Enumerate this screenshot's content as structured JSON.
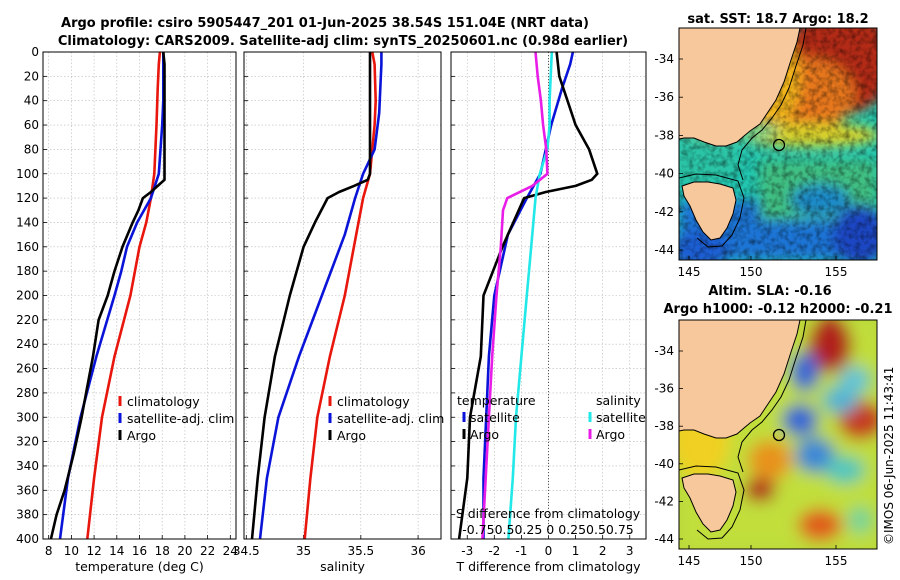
{
  "title_line1": "Argo profile: csiro 5905447_201 01-Jun-2025 38.54S 151.04E (NRT data)",
  "title_line2": "Climatology: CARS2009. Satellite-adj clim: synTS_20250601.nc (0.98d earlier)",
  "credit": "©IMOS 06-Jun-2025 11:43:41",
  "colors": {
    "red": "#e8160c",
    "blue": "#0a14d8",
    "black": "#000000",
    "cyan": "#22e8e8",
    "magenta": "#e81ee8",
    "land": "#f7c89b"
  },
  "chart_data": [
    {
      "type": "line",
      "name": "temperature",
      "xlabel": "temperature (deg C)",
      "xlim": [
        7.5,
        24.5
      ],
      "xticks": [
        "8",
        "10",
        "12",
        "14",
        "16",
        "18",
        "20",
        "22",
        "24"
      ],
      "xtick_values": [
        8,
        10,
        12,
        14,
        16,
        18,
        20,
        22,
        24
      ],
      "ylim": [
        400,
        0
      ],
      "yticks": [
        "0",
        "20",
        "40",
        "60",
        "80",
        "100",
        "120",
        "140",
        "160",
        "180",
        "200",
        "220",
        "240",
        "260",
        "280",
        "300",
        "320",
        "340",
        "360",
        "380",
        "400"
      ],
      "legend": [
        "climatology",
        "satellite-adj. clim",
        "Argo"
      ],
      "series": [
        {
          "name": "climatology",
          "color": "red",
          "depth": [
            0,
            10,
            30,
            60,
            100,
            120,
            140,
            160,
            200,
            250,
            300,
            350,
            400
          ],
          "values": [
            17.8,
            17.7,
            17.6,
            17.5,
            17.3,
            17.0,
            16.6,
            16.0,
            15.2,
            13.8,
            12.7,
            12.0,
            11.4
          ]
        },
        {
          "name": "satellite-adj. clim",
          "color": "blue",
          "depth": [
            0,
            10,
            40,
            60,
            100,
            120,
            140,
            160,
            180,
            200,
            250,
            300,
            350,
            400
          ],
          "values": [
            18.1,
            18.1,
            18.1,
            18.0,
            17.7,
            17.0,
            15.8,
            14.9,
            14.4,
            13.8,
            12.2,
            10.8,
            9.7,
            9.0
          ]
        },
        {
          "name": "Argo",
          "color": "black",
          "depth": [
            0,
            10,
            20,
            40,
            60,
            80,
            100,
            105,
            110,
            115,
            120,
            130,
            140,
            160,
            180,
            200,
            220,
            250,
            280,
            300,
            330,
            360,
            380,
            400
          ],
          "values": [
            18.1,
            18.2,
            18.2,
            18.2,
            18.2,
            18.2,
            18.2,
            18.2,
            17.6,
            17.0,
            16.3,
            15.9,
            15.4,
            14.5,
            13.8,
            13.2,
            12.4,
            11.9,
            11.3,
            10.9,
            10.2,
            9.4,
            8.7,
            8.2
          ]
        }
      ]
    },
    {
      "type": "line",
      "name": "salinity",
      "xlabel": "salinity",
      "xlim": [
        34.48,
        36.2
      ],
      "xticks": [
        "34.5",
        "35",
        "35.5",
        "36"
      ],
      "xtick_values": [
        34.5,
        35,
        35.5,
        36
      ],
      "ylim": [
        400,
        0
      ],
      "legend": [
        "climatology",
        "satellite-adj. clim",
        "Argo"
      ],
      "series": [
        {
          "name": "climatology",
          "color": "red",
          "depth": [
            0,
            10,
            40,
            60,
            80,
            100,
            120,
            150,
            200,
            250,
            300,
            350,
            400
          ],
          "values": [
            35.6,
            35.62,
            35.63,
            35.62,
            35.6,
            35.58,
            35.52,
            35.46,
            35.36,
            35.23,
            35.12,
            35.06,
            35.01
          ]
        },
        {
          "name": "satellite-adj. clim",
          "color": "blue",
          "depth": [
            0,
            10,
            30,
            50,
            80,
            100,
            120,
            150,
            200,
            250,
            300,
            350,
            400
          ],
          "values": [
            35.68,
            35.68,
            35.67,
            35.66,
            35.62,
            35.52,
            35.45,
            35.36,
            35.16,
            34.96,
            34.78,
            34.68,
            34.62
          ]
        },
        {
          "name": "Argo",
          "color": "black",
          "depth": [
            0,
            5,
            20,
            60,
            100,
            105,
            110,
            115,
            120,
            140,
            160,
            200,
            250,
            300,
            350,
            400
          ],
          "values": [
            35.58,
            35.58,
            35.58,
            35.58,
            35.58,
            35.56,
            35.44,
            35.31,
            35.21,
            35.1,
            35.0,
            34.88,
            34.75,
            34.66,
            34.6,
            34.55
          ]
        }
      ]
    },
    {
      "type": "line",
      "name": "difference",
      "xlabel": "T difference from climatology",
      "xlabel_top": "S difference from climatology",
      "xlim": [
        -3.6,
        3.6
      ],
      "xticks": [
        "-3",
        "-2",
        "-1",
        "0",
        "1",
        "2",
        "3"
      ],
      "xtick_values": [
        -3,
        -2,
        -1,
        0,
        1,
        2,
        3
      ],
      "top_ticks": "-0.750.50.25  0  0.250.50.75",
      "ylim": [
        400,
        0
      ],
      "legend_temperature": {
        "title": "temperature",
        "satellite": "satellite",
        "argo": "Argo"
      },
      "legend_salinity": {
        "title": "salinity",
        "satellite": "satellite",
        "argo": "Argo"
      },
      "series": [
        {
          "name": "temperature satellite",
          "color": "blue",
          "depth": [
            0,
            10,
            30,
            60,
            100,
            120,
            150,
            200,
            250,
            300,
            350,
            400
          ],
          "values": [
            0.9,
            0.8,
            0.5,
            0.1,
            -0.3,
            -0.8,
            -1.5,
            -2.0,
            -2.2,
            -2.3,
            -2.4,
            -2.4
          ]
        },
        {
          "name": "temperature Argo",
          "color": "black",
          "depth": [
            0,
            20,
            40,
            60,
            80,
            100,
            105,
            110,
            115,
            120,
            140,
            160,
            200,
            250,
            300,
            350,
            400
          ],
          "values": [
            0.3,
            0.4,
            0.7,
            1.0,
            1.5,
            1.8,
            1.6,
            1.0,
            -0.1,
            -0.9,
            -1.3,
            -1.7,
            -2.4,
            -2.5,
            -2.9,
            -3.0,
            -3.3
          ]
        },
        {
          "name": "salinity satellite",
          "color": "cyan",
          "depth": [
            0,
            40,
            60,
            80,
            100,
            120,
            160,
            200,
            250,
            300,
            350,
            400
          ],
          "values": [
            0.03,
            0.01,
            0.01,
            -0.01,
            -0.08,
            -0.12,
            -0.16,
            -0.2,
            -0.25,
            -0.3,
            -0.33,
            -0.37
          ]
        },
        {
          "name": "salinity Argo",
          "color": "magenta",
          "depth": [
            0,
            20,
            40,
            60,
            80,
            100,
            110,
            120,
            130,
            160,
            200,
            250,
            300,
            350,
            400
          ],
          "values": [
            -0.12,
            -0.1,
            -0.07,
            -0.05,
            -0.02,
            -0.01,
            -0.15,
            -0.38,
            -0.42,
            -0.44,
            -0.48,
            -0.52,
            -0.55,
            -0.58,
            -0.61
          ]
        }
      ]
    }
  ],
  "maps": {
    "sst": {
      "title": "sat. SST: 18.7 Argo: 18.2",
      "yticks": [
        "-34",
        "-36",
        "-38",
        "-40",
        "-42",
        "-44"
      ],
      "xticks": [
        "145",
        "150",
        "155"
      ]
    },
    "sla": {
      "title1": "Altim. SLA: -0.16",
      "title2": "Argo h1000: -0.12 h2000: -0.21",
      "yticks": [
        "-34",
        "-36",
        "-38",
        "-40",
        "-42",
        "-44"
      ],
      "xticks": [
        "145",
        "150",
        "155"
      ]
    }
  }
}
